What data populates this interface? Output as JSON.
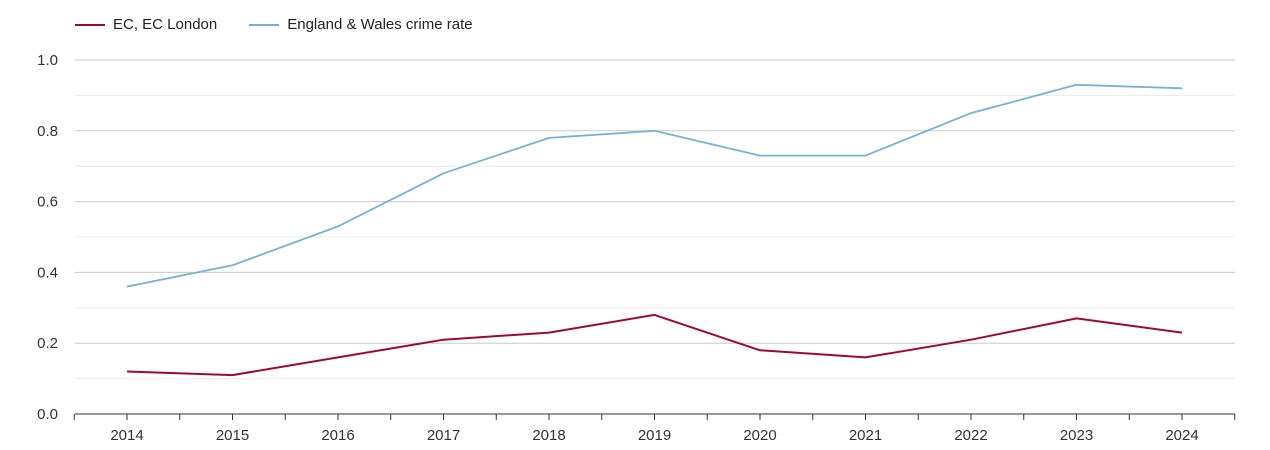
{
  "chart_data": {
    "type": "line",
    "title": "",
    "xlabel": "",
    "ylabel": "",
    "ylim": [
      0,
      1.0
    ],
    "yticks": [
      "0.0",
      "0.2",
      "0.4",
      "0.6",
      "0.8",
      "1.0"
    ],
    "grid": true,
    "legend_position": "top-left",
    "categories": [
      "2014",
      "2015",
      "2016",
      "2017",
      "2018",
      "2019",
      "2020",
      "2021",
      "2022",
      "2023",
      "2024"
    ],
    "series": [
      {
        "name": "EC, EC London",
        "color": "#9b0a35",
        "values": [
          0.12,
          0.11,
          0.16,
          0.21,
          0.23,
          0.28,
          0.18,
          0.16,
          0.21,
          0.27,
          0.23
        ]
      },
      {
        "name": "England & Wales crime rate",
        "color": "#7ab1d3",
        "values": [
          0.36,
          0.42,
          0.53,
          0.68,
          0.78,
          0.8,
          0.73,
          0.73,
          0.85,
          0.93,
          0.92
        ]
      }
    ]
  }
}
